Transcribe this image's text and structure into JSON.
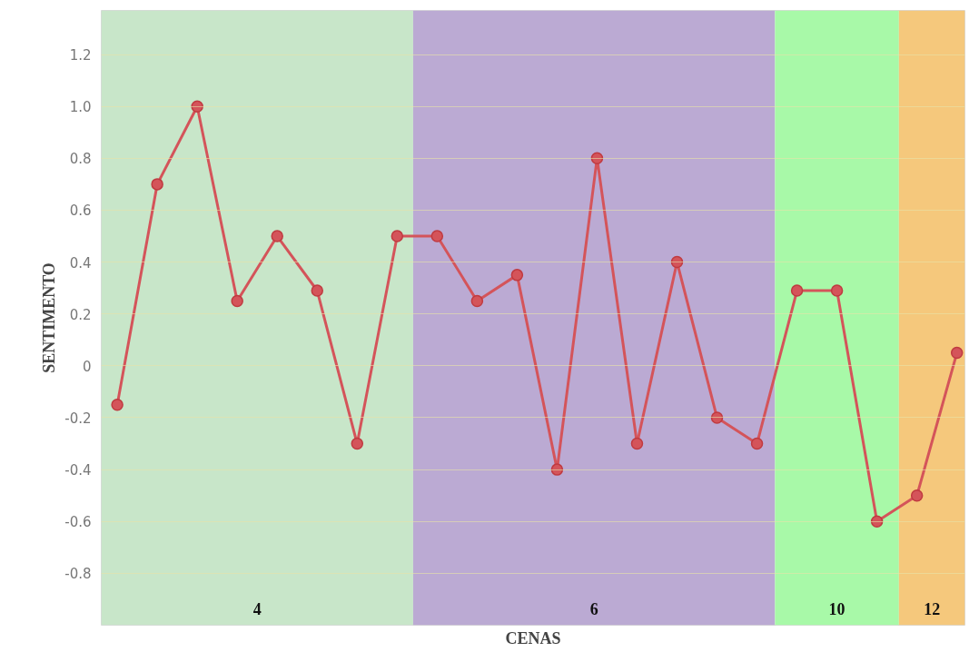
{
  "chart_data": {
    "type": "line",
    "xlabel": "CENAS",
    "ylabel": "SENTIMENTO",
    "categories": [
      null,
      null,
      null,
      null,
      null,
      null,
      null,
      null,
      null,
      null,
      null,
      null,
      null,
      null,
      null,
      null,
      null,
      null,
      null,
      null,
      null,
      null
    ],
    "series": [
      {
        "color": "#d4545a",
        "values": [
          -0.15,
          0.7,
          1.0,
          0.25,
          0.5,
          0.29,
          -0.3,
          0.5,
          0.5,
          0.25,
          0.35,
          -0.4,
          0.8,
          -0.3,
          0.4,
          -0.2,
          -0.3,
          0.29,
          0.29,
          -0.6,
          -0.5,
          0.05
        ]
      }
    ],
    "ylim": [
      -1.0,
      1.37
    ],
    "yticks": [
      {
        "value": -0.8,
        "label": "-0.8"
      },
      {
        "value": -0.6,
        "label": "-0.6"
      },
      {
        "value": -0.4,
        "label": "-0.4"
      },
      {
        "value": -0.2,
        "label": "-0.2"
      },
      0,
      {
        "value": 0.2,
        "label": "0.2"
      },
      {
        "value": 0.4,
        "label": "0.4"
      },
      {
        "value": 0.6,
        "label": "0.6"
      },
      {
        "value": 0.8,
        "label": "0.8"
      },
      {
        "value": 1.0,
        "label": "1.0"
      },
      {
        "value": 1.2,
        "label": "1.2"
      }
    ],
    "annotations": [
      "4",
      "6",
      "10",
      "12"
    ],
    "tick_labels": "y",
    "grid": "y",
    "marker": "circle",
    "line_style": "solid"
  }
}
